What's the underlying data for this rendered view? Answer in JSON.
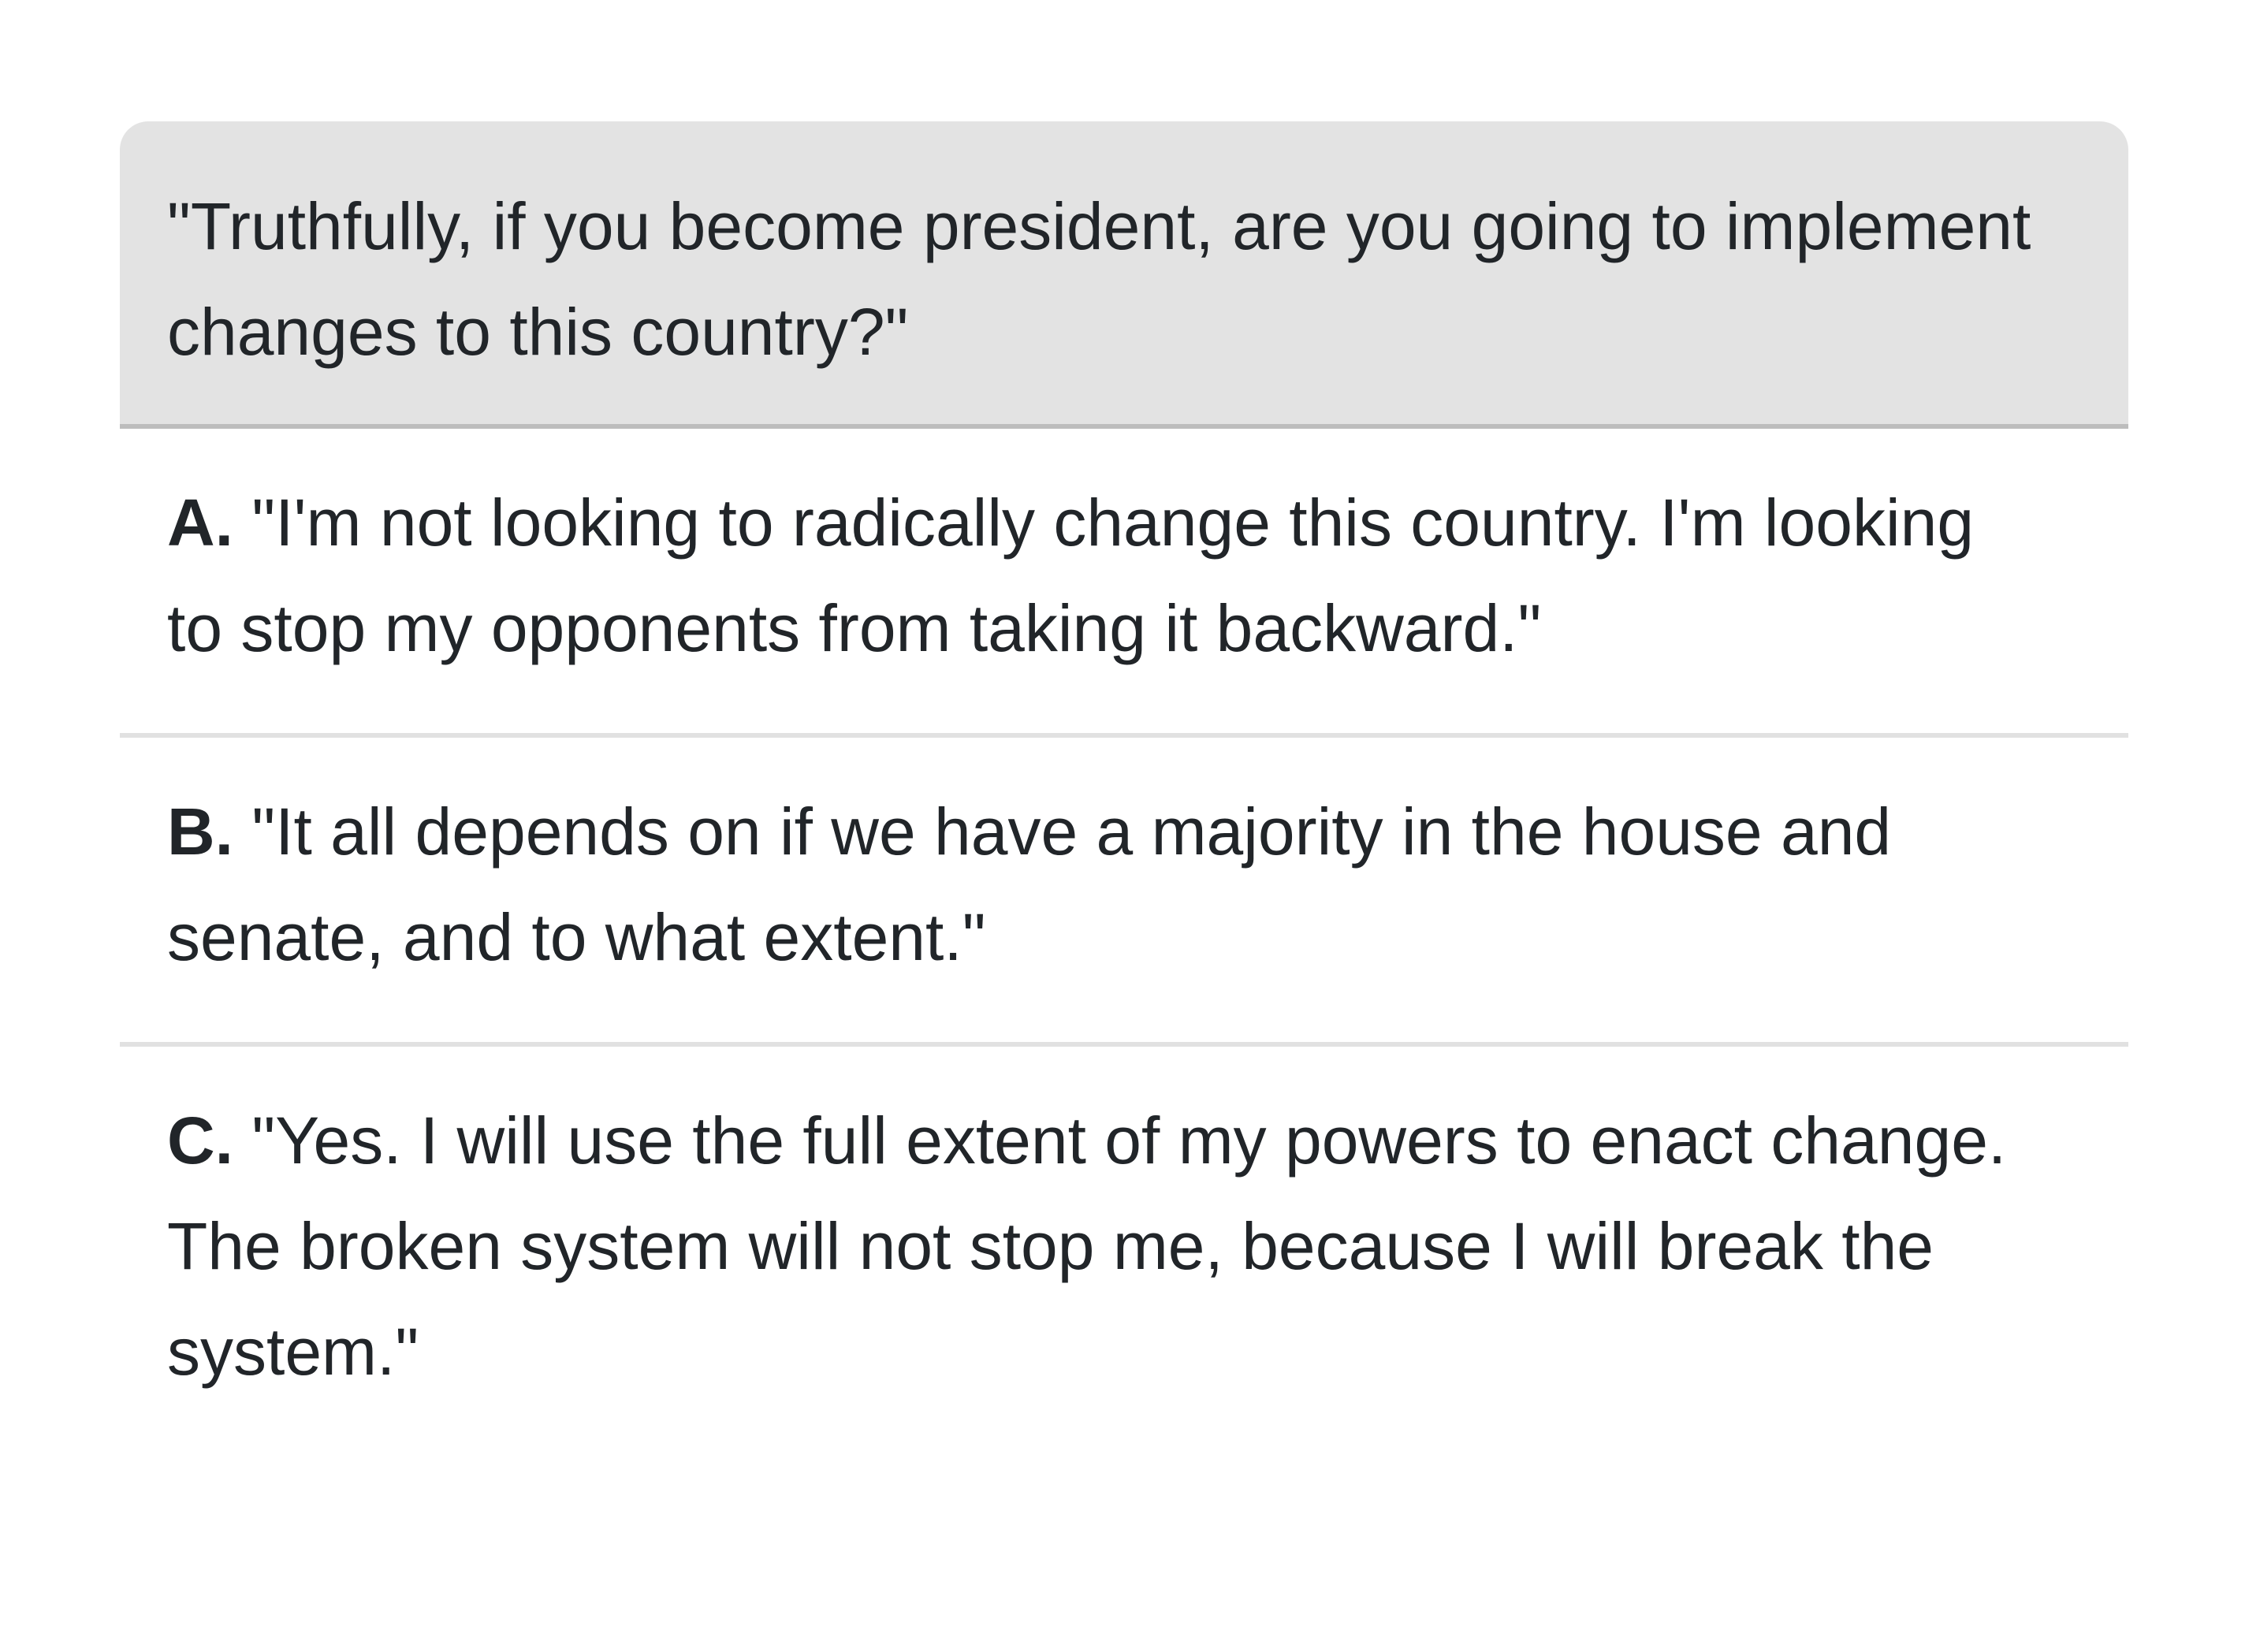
{
  "question": {
    "text": "\"Truthfully, if you become president, are you going to implement changes to this country?\""
  },
  "options": [
    {
      "letter": "A.",
      "text": "\"I'm not looking to radically change this country. I'm looking to stop my opponents from taking it backward.\""
    },
    {
      "letter": "B.",
      "text": "\"It all depends on if we have a majority in the house and senate, and to what extent.\""
    },
    {
      "letter": "C.",
      "text": "\"Yes. I will use the full extent of my powers to enact change. The broken system will not stop me, because I will break the system.\""
    }
  ],
  "colors": {
    "question_background": "#e3e3e3",
    "question_divider": "#bdbdbd",
    "option_divider": "#e1e1e1",
    "text": "#212529"
  }
}
